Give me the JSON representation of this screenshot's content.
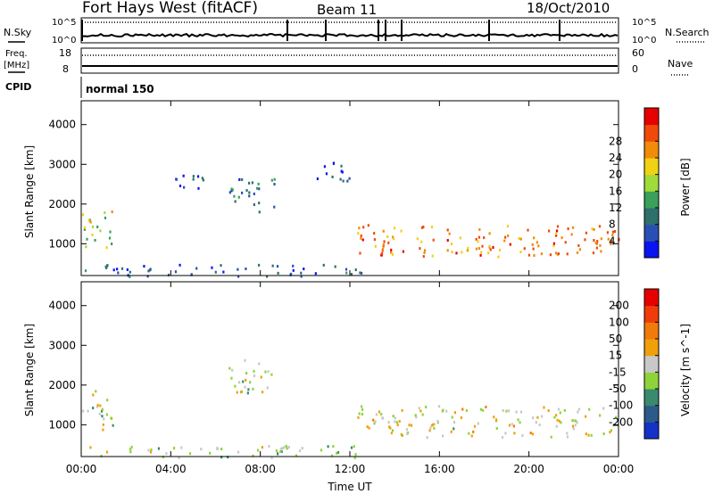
{
  "header": {
    "title": "Fort Hays West (fitACF)",
    "beam": "Beam 11",
    "date": "18/Oct/2010"
  },
  "top_panels": {
    "nsky_label": "N.Sky",
    "nsky_ticks": [
      "10^5",
      "10^0"
    ],
    "nsearch_label": "N.Search",
    "nsearch_ticks": [
      "10^5",
      "10^0"
    ],
    "freq_label": "Freq.",
    "freq_unit": "[MHz]",
    "freq_ticks": [
      "18",
      "8"
    ],
    "nave_label": "Nave",
    "nave_ticks": [
      "60",
      "0"
    ],
    "cpid_label": "CPID",
    "cpid_value": "normal 150"
  },
  "colors": {
    "power_scale": [
      "#0a14f0",
      "#2850b4",
      "#2f6f6c",
      "#3aa05a",
      "#9fdb3a",
      "#f0d214",
      "#f08c0a",
      "#f04a0a",
      "#e60000"
    ],
    "velocity_scale": [
      "#1432c8",
      "#2c5a8a",
      "#3a8a6e",
      "#8fd33a",
      "#c8c8c8",
      "#f0a00a",
      "#f07a0a",
      "#f03c0a",
      "#e60000"
    ]
  },
  "chart_data": [
    {
      "type": "heatmap",
      "name": "power",
      "ylabel": "Slant Range [km]",
      "yticks": [
        "1000",
        "2000",
        "3000",
        "4000"
      ],
      "ylim": [
        200,
        4600
      ],
      "xlim": [
        0,
        24
      ],
      "xticks": [
        "00:00",
        "04:00",
        "08:00",
        "12:00",
        "16:00",
        "20:00",
        "00:00"
      ],
      "colorbar": {
        "label": "Power [dB]",
        "ticks": [
          "4",
          "8",
          "12",
          "16",
          "20",
          "24",
          "28"
        ],
        "range": [
          0,
          32
        ]
      },
      "features": [
        {
          "t": [
            0.0,
            1.4
          ],
          "range": [
            900,
            1900
          ],
          "value_db": 16
        },
        {
          "t": [
            4.0,
            5.6
          ],
          "range": [
            2300,
            2800
          ],
          "value_db": 6
        },
        {
          "t": [
            6.5,
            8.6
          ],
          "range": [
            1800,
            2700
          ],
          "value_db": 8
        },
        {
          "t": [
            10.5,
            12.0
          ],
          "range": [
            2600,
            3200
          ],
          "value_db": 6
        },
        {
          "t": [
            0.0,
            12.5
          ],
          "range": [
            200,
            500
          ],
          "value_db": 6
        },
        {
          "t": [
            12.3,
            24.0
          ],
          "range": [
            700,
            1500
          ],
          "value_db": 24
        }
      ]
    },
    {
      "type": "heatmap",
      "name": "velocity",
      "ylabel": "Slant Range [km]",
      "yticks": [
        "1000",
        "2000",
        "3000",
        "4000"
      ],
      "ylim": [
        200,
        4600
      ],
      "xlim": [
        0,
        24
      ],
      "xticks": [
        "00:00",
        "04:00",
        "08:00",
        "12:00",
        "16:00",
        "20:00",
        "00:00"
      ],
      "xlabel": "Time UT",
      "colorbar": {
        "label": "Velocity [m s^-1]",
        "ticks": [
          "200",
          "100",
          "50",
          "15",
          "-15",
          "-50",
          "-100",
          "-200"
        ],
        "range": [
          -250,
          250
        ]
      },
      "features": [
        {
          "t": [
            0.0,
            1.4
          ],
          "range": [
            900,
            1900
          ],
          "value_ms": -10
        },
        {
          "t": [
            6.5,
            8.6
          ],
          "range": [
            1800,
            2700
          ],
          "value_ms": -20
        },
        {
          "t": [
            0.0,
            12.5
          ],
          "range": [
            200,
            500
          ],
          "value_ms": -50
        },
        {
          "t": [
            12.3,
            24.0
          ],
          "range": [
            700,
            1500
          ],
          "value_ms": 0
        }
      ]
    }
  ]
}
